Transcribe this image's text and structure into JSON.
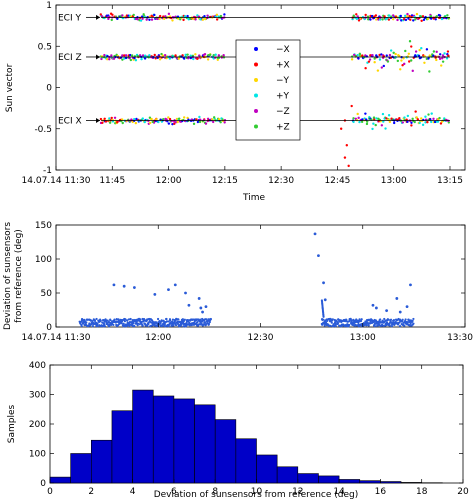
{
  "chart_data": [
    {
      "type": "scatter",
      "xlabel": "Time",
      "ylabel": "Sun vector",
      "x_ticks": [
        "14.07.14 11:30",
        "11:45",
        "12:00",
        "12:15",
        "12:30",
        "12:45",
        "13:00",
        "13:15"
      ],
      "x_tick_minutes": [
        0,
        15,
        30,
        45,
        60,
        75,
        90,
        105
      ],
      "xlim_minutes": [
        0,
        109
      ],
      "ylim": [
        -1,
        1
      ],
      "y_ticks": [
        "-1",
        "-0.5",
        "0",
        "0.5",
        "1"
      ],
      "y_tick_values": [
        -1,
        -0.5,
        0,
        0.5,
        1
      ],
      "grid": false,
      "legend_position": "center-right",
      "series": [
        {
          "name": "−X",
          "color": "#0000ff"
        },
        {
          "name": "+X",
          "color": "#ff0000"
        },
        {
          "name": "−Y",
          "color": "#ffd700"
        },
        {
          "name": "+Y",
          "color": "#00e5e5"
        },
        {
          "name": "−Z",
          "color": "#c000c0"
        },
        {
          "name": "+Z",
          "color": "#33cc33"
        }
      ],
      "reference_lines": [
        {
          "label": "ECI Y",
          "value": 0.85
        },
        {
          "label": "ECI Z",
          "value": 0.37
        },
        {
          "label": "ECI X",
          "value": -0.4
        }
      ],
      "data_segments_minutes": [
        [
          12,
          45
        ],
        [
          79,
          105
        ]
      ]
    },
    {
      "type": "scatter",
      "xlabel": "",
      "ylabel": "Deviation of sunsensors from reference (deg)",
      "x_ticks": [
        "14.07.14 11:30",
        "12:00",
        "12:30",
        "13:00",
        "13:30"
      ],
      "x_tick_minutes": [
        0,
        30,
        60,
        90,
        120
      ],
      "xlim_minutes": [
        0,
        120
      ],
      "ylim": [
        0,
        150
      ],
      "y_ticks": [
        "0",
        "50",
        "100",
        "150"
      ],
      "y_tick_values": [
        0,
        50,
        100,
        150
      ],
      "grid": false,
      "series": [
        {
          "name": "",
          "color": "#2a5bd7"
        }
      ],
      "baseline_deviation_range": [
        0,
        15
      ],
      "outliers": [
        {
          "x": 17,
          "y": 62
        },
        {
          "x": 20,
          "y": 60
        },
        {
          "x": 23,
          "y": 58
        },
        {
          "x": 29,
          "y": 48
        },
        {
          "x": 33,
          "y": 55
        },
        {
          "x": 35,
          "y": 62
        },
        {
          "x": 38,
          "y": 50
        },
        {
          "x": 39,
          "y": 32
        },
        {
          "x": 42,
          "y": 42
        },
        {
          "x": 42.5,
          "y": 28
        },
        {
          "x": 43,
          "y": 22
        },
        {
          "x": 44,
          "y": 30
        },
        {
          "x": 76,
          "y": 137
        },
        {
          "x": 77,
          "y": 105
        },
        {
          "x": 78.5,
          "y": 65
        },
        {
          "x": 79,
          "y": 40
        },
        {
          "x": 93,
          "y": 32
        },
        {
          "x": 94,
          "y": 28
        },
        {
          "x": 97,
          "y": 24
        },
        {
          "x": 100,
          "y": 42
        },
        {
          "x": 101,
          "y": 22
        },
        {
          "x": 103,
          "y": 30
        },
        {
          "x": 104,
          "y": 62
        }
      ],
      "data_segments_minutes": [
        [
          7,
          45.5
        ],
        [
          78,
          105
        ]
      ]
    },
    {
      "type": "bar",
      "xlabel": "Deviation of sunsensors from reference (deg)",
      "ylabel": "Samples",
      "x_ticks": [
        "0",
        "2",
        "4",
        "6",
        "8",
        "10",
        "12",
        "14",
        "16",
        "18",
        "20"
      ],
      "xlim": [
        0,
        20
      ],
      "ylim": [
        0,
        400
      ],
      "y_ticks": [
        "0",
        "100",
        "200",
        "300",
        "400"
      ],
      "bin_width": 1,
      "bin_starts": [
        0,
        1,
        2,
        3,
        4,
        5,
        6,
        7,
        8,
        9,
        10,
        11,
        12,
        13,
        14,
        15,
        16,
        17,
        18,
        19
      ],
      "values": [
        20,
        100,
        145,
        245,
        315,
        295,
        285,
        265,
        215,
        150,
        95,
        55,
        32,
        24,
        12,
        8,
        5,
        2,
        1,
        0
      ],
      "bar_color": "#0000c8"
    }
  ]
}
